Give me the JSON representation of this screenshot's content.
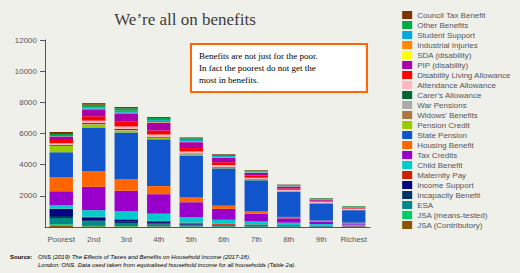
{
  "chart_data": {
    "type": "bar",
    "title": "We’re all on benefits",
    "categories": [
      "Poorest",
      "2nd",
      "3rd",
      "4th",
      "5th",
      "6th",
      "7th",
      "8th",
      "9th",
      "Richest"
    ],
    "series": [
      {
        "name": "Council Tax Benefit",
        "color": "#7B3300",
        "values": [
          130,
          100,
          80,
          60,
          50,
          40,
          30,
          20,
          15,
          10
        ]
      },
      {
        "name": "Other Benefits",
        "color": "#00AA44",
        "values": [
          120,
          170,
          160,
          140,
          110,
          90,
          65,
          55,
          45,
          42
        ]
      },
      {
        "name": "Student Support",
        "color": "#00AADD",
        "values": [
          20,
          90,
          130,
          130,
          110,
          90,
          65,
          45,
          32,
          30
        ]
      },
      {
        "name": "Industrial Injuries",
        "color": "#FF8800",
        "values": [
          12,
          22,
          22,
          22,
          20,
          20,
          16,
          15,
          12,
          10
        ]
      },
      {
        "name": "SDA (disability)",
        "color": "#FFFF00",
        "values": [
          12,
          12,
          12,
          12,
          10,
          6,
          5,
          3,
          2,
          2
        ]
      },
      {
        "name": "PIP (disability)",
        "color": "#AA00AA",
        "values": [
          220,
          450,
          550,
          500,
          380,
          280,
          170,
          110,
          65,
          35
        ]
      },
      {
        "name": "Disability Living Allowance",
        "color": "#FF0000",
        "values": [
          200,
          280,
          300,
          260,
          220,
          180,
          140,
          90,
          60,
          35
        ]
      },
      {
        "name": "Attendance Allowance",
        "color": "#FFB6C1",
        "values": [
          100,
          150,
          160,
          140,
          130,
          120,
          100,
          90,
          80,
          70
        ]
      },
      {
        "name": "Carer’s Allowance",
        "color": "#006633",
        "values": [
          60,
          60,
          70,
          60,
          50,
          35,
          25,
          18,
          12,
          6
        ]
      },
      {
        "name": "War Pensions",
        "color": "#AAAAAA",
        "values": [
          10,
          15,
          15,
          15,
          15,
          15,
          12,
          12,
          12,
          12
        ]
      },
      {
        "name": "Widows’ Benefits",
        "color": "#AA7744",
        "values": [
          20,
          20,
          15,
          15,
          12,
          10,
          8,
          6,
          5,
          5
        ]
      },
      {
        "name": "Pension Credit",
        "color": "#99CC00",
        "values": [
          400,
          200,
          120,
          80,
          50,
          30,
          20,
          15,
          10,
          5
        ]
      },
      {
        "name": "State Pension",
        "color": "#1155CC",
        "values": [
          1600,
          2800,
          3000,
          3000,
          2700,
          2400,
          2000,
          1600,
          1100,
          800
        ]
      },
      {
        "name": "Housing Benefit",
        "color": "#FF6600",
        "values": [
          900,
          1000,
          750,
          520,
          300,
          200,
          140,
          90,
          70,
          50
        ]
      },
      {
        "name": "Tax Credits",
        "color": "#9900CC",
        "values": [
          900,
          1500,
          1300,
          1250,
          950,
          700,
          500,
          280,
          150,
          80
        ]
      },
      {
        "name": "Child Benefit",
        "color": "#00CCCC",
        "values": [
          220,
          420,
          500,
          460,
          360,
          260,
          200,
          150,
          100,
          80
        ]
      },
      {
        "name": "Maternity Pay",
        "color": "#CC2200",
        "values": [
          20,
          40,
          60,
          80,
          70,
          60,
          50,
          40,
          25,
          20
        ]
      },
      {
        "name": "Income Support",
        "color": "#000080",
        "values": [
          450,
          180,
          120,
          80,
          50,
          30,
          20,
          15,
          10,
          8
        ]
      },
      {
        "name": "Incapacity Benefit",
        "color": "#003366",
        "values": [
          120,
          90,
          80,
          60,
          40,
          30,
          20,
          15,
          10,
          8
        ]
      },
      {
        "name": "ESA",
        "color": "#008888",
        "values": [
          400,
          280,
          200,
          130,
          90,
          60,
          50,
          40,
          30,
          20
        ]
      },
      {
        "name": "JSA (means-tested)",
        "color": "#00CC66",
        "values": [
          100,
          30,
          20,
          15,
          10,
          10,
          8,
          8,
          5,
          5
        ]
      },
      {
        "name": "JSA (Contributory)",
        "color": "#885500",
        "values": [
          80,
          40,
          40,
          30,
          20,
          15,
          10,
          10,
          8,
          8
        ]
      }
    ],
    "ylim": [
      0,
      12000
    ],
    "yticks": [
      2000,
      4000,
      6000,
      8000,
      10000,
      12000
    ],
    "grid": false,
    "legend": "right",
    "stacked": true,
    "annotation": "Benefits are not just for the poor.\nIn fact the poorest do not get the\nmost in benefits.",
    "source_label": "Source:",
    "source": "ONS (2019) The Effects of Taxes and Benefits on Household Income (2017-18).\nLondon: ONS. Data used taken from equivalised household income for all households (Table 2a)."
  }
}
